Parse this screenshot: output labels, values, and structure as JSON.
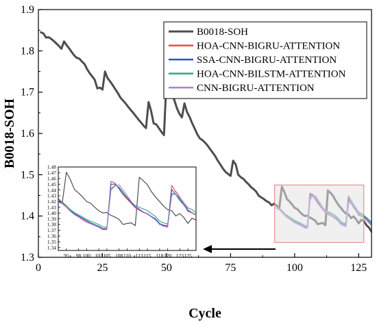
{
  "chart_data": [
    {
      "type": "line",
      "ylabel": "B0018-SOH",
      "xlabel": "Cycle",
      "xlim": [
        0,
        130
      ],
      "ylim": [
        1.3,
        1.9
      ],
      "x_ticks": [
        0,
        25,
        50,
        75,
        100,
        125
      ],
      "y_ticks": [
        "1.3",
        "1.4",
        "1.5",
        "1.6",
        "1.7",
        "1.8",
        "1.9"
      ],
      "legend_position": "top-right",
      "grid": false,
      "series": [
        {
          "name": "B0018-SOH",
          "color": "#4d4d4d",
          "x": [
            1,
            2,
            3,
            4,
            5,
            6,
            7,
            8,
            9,
            10,
            11,
            12,
            13,
            14,
            15,
            16,
            17,
            18,
            19,
            20,
            21,
            22,
            23,
            24,
            25,
            26,
            27,
            28,
            29,
            30,
            31,
            32,
            33,
            34,
            35,
            36,
            37,
            38,
            39,
            40,
            41,
            42,
            43,
            44,
            45,
            46,
            47,
            48,
            49,
            50,
            51,
            52,
            53,
            54,
            55,
            56,
            57,
            58,
            59,
            60,
            61,
            62,
            63,
            64,
            65,
            66,
            67,
            68,
            69,
            70,
            71,
            72,
            73,
            74,
            75,
            76,
            77,
            78,
            79,
            80,
            81,
            82,
            83,
            84,
            85,
            86,
            87,
            88,
            89,
            90,
            91,
            92,
            93,
            94,
            95,
            96,
            97,
            98,
            99,
            100,
            101,
            102,
            103,
            104,
            105,
            106,
            107,
            108,
            109,
            110,
            111,
            112,
            113,
            114,
            115,
            116,
            117,
            118,
            119,
            120,
            121,
            122,
            123,
            124,
            125,
            126,
            127,
            128,
            129,
            130
          ],
          "y": [
            1.845,
            1.842,
            1.832,
            1.833,
            1.829,
            1.824,
            1.818,
            1.812,
            1.805,
            1.823,
            1.814,
            1.806,
            1.797,
            1.789,
            1.783,
            1.781,
            1.774,
            1.768,
            1.756,
            1.746,
            1.738,
            1.73,
            1.709,
            1.711,
            1.706,
            1.75,
            1.734,
            1.726,
            1.717,
            1.707,
            1.698,
            1.687,
            1.68,
            1.673,
            1.665,
            1.657,
            1.65,
            1.642,
            1.634,
            1.627,
            1.619,
            1.613,
            1.676,
            1.654,
            1.624,
            1.622,
            1.613,
            1.604,
            1.596,
            1.728,
            1.72,
            1.7,
            1.682,
            1.662,
            1.648,
            1.639,
            1.673,
            1.652,
            1.64,
            1.625,
            1.612,
            1.598,
            1.588,
            1.584,
            1.578,
            1.571,
            1.562,
            1.554,
            1.545,
            1.534,
            1.525,
            1.515,
            1.507,
            1.502,
            1.497,
            1.534,
            1.525,
            1.5,
            1.494,
            1.49,
            1.483,
            1.477,
            1.47,
            1.465,
            1.459,
            1.449,
            1.445,
            1.441,
            1.436,
            1.433,
            1.426,
            1.43,
            1.425,
            1.418,
            1.471,
            1.458,
            1.441,
            1.435,
            1.428,
            1.42,
            1.417,
            1.41,
            1.404,
            1.4,
            1.401,
            1.396,
            1.393,
            1.389,
            1.38,
            1.382,
            1.383,
            1.378,
            1.462,
            1.456,
            1.449,
            1.437,
            1.428,
            1.42,
            1.412,
            1.406,
            1.404,
            1.395,
            1.399,
            1.392,
            1.382,
            1.391,
            1.388,
            1.378,
            1.372,
            1.362
          ]
        },
        {
          "name": "HOA-CNN-BIGRU-ATTENTION",
          "color": "#e8474b",
          "x": [
            93,
            94,
            95,
            96,
            97,
            98,
            99,
            100,
            101,
            102,
            103,
            104,
            105,
            106,
            107,
            108,
            109,
            110,
            111,
            112,
            113,
            114,
            115,
            116,
            117,
            118,
            119,
            120,
            121,
            122,
            123,
            124,
            125,
            126,
            127,
            128,
            129,
            130
          ],
          "y": [
            1.422,
            1.418,
            1.411,
            1.404,
            1.398,
            1.394,
            1.389,
            1.385,
            1.382,
            1.38,
            1.376,
            1.372,
            1.372,
            1.455,
            1.452,
            1.442,
            1.432,
            1.424,
            1.417,
            1.409,
            1.405,
            1.401,
            1.398,
            1.393,
            1.389,
            1.38,
            1.378,
            1.377,
            1.448,
            1.437,
            1.425,
            1.415,
            1.403,
            1.4,
            1.396,
            1.391,
            1.384,
            1.378
          ]
        },
        {
          "name": "SSA-CNN-BIGRU-ATTENTION",
          "color": "#1f5bbf",
          "x": [
            93,
            94,
            95,
            96,
            97,
            98,
            99,
            100,
            101,
            102,
            103,
            104,
            105,
            106,
            107,
            108,
            109,
            110,
            111,
            112,
            113,
            114,
            115,
            116,
            117,
            118,
            119,
            120,
            121,
            122,
            123,
            124,
            125,
            126,
            127,
            128,
            129,
            130
          ],
          "y": [
            1.42,
            1.417,
            1.41,
            1.404,
            1.399,
            1.395,
            1.391,
            1.387,
            1.383,
            1.38,
            1.377,
            1.373,
            1.373,
            1.45,
            1.45,
            1.443,
            1.433,
            1.426,
            1.418,
            1.411,
            1.406,
            1.402,
            1.399,
            1.394,
            1.39,
            1.382,
            1.379,
            1.378,
            1.441,
            1.432,
            1.422,
            1.414,
            1.404,
            1.401,
            1.397,
            1.392,
            1.386,
            1.38
          ]
        },
        {
          "name": "HOA-CNN-BILSTM-ATTENTION",
          "color": "#2aa876",
          "x": [
            93,
            94,
            95,
            96,
            97,
            98,
            99,
            100,
            101,
            102,
            103,
            104,
            105,
            106,
            107,
            108,
            109,
            110,
            111,
            112,
            113,
            114,
            115,
            116,
            117,
            118,
            119,
            120,
            121,
            122,
            123,
            124,
            125,
            126,
            127,
            128,
            129,
            130
          ],
          "y": [
            1.421,
            1.419,
            1.413,
            1.406,
            1.401,
            1.397,
            1.393,
            1.389,
            1.386,
            1.383,
            1.38,
            1.376,
            1.375,
            1.442,
            1.448,
            1.445,
            1.436,
            1.427,
            1.42,
            1.413,
            1.41,
            1.407,
            1.404,
            1.399,
            1.394,
            1.386,
            1.383,
            1.381,
            1.434,
            1.432,
            1.424,
            1.418,
            1.409,
            1.406,
            1.401,
            1.396,
            1.39,
            1.384
          ]
        },
        {
          "name": "CNN-BIGRU-ATTENTION",
          "color": "#b67ad8",
          "x": [
            93,
            94,
            95,
            96,
            97,
            98,
            99,
            100,
            101,
            102,
            103,
            104,
            105,
            106,
            107,
            108,
            109,
            110,
            111,
            112,
            113,
            114,
            115,
            116,
            117,
            118,
            119,
            120,
            121,
            122,
            123,
            124,
            125,
            126,
            127,
            128,
            129,
            130
          ],
          "y": [
            1.419,
            1.416,
            1.41,
            1.403,
            1.397,
            1.393,
            1.388,
            1.384,
            1.381,
            1.378,
            1.375,
            1.371,
            1.371,
            1.44,
            1.447,
            1.449,
            1.44,
            1.43,
            1.42,
            1.412,
            1.407,
            1.402,
            1.398,
            1.393,
            1.388,
            1.38,
            1.377,
            1.375,
            1.43,
            1.438,
            1.428,
            1.418,
            1.406,
            1.401,
            1.396,
            1.391,
            1.385,
            1.379
          ]
        }
      ]
    },
    {
      "type": "line",
      "role": "inset zoom of cycles 93-127",
      "xlim": [
        93,
        127
      ],
      "ylim": [
        1.335,
        1.48
      ],
      "x_ticks": [
        "95",
        "98",
        "100",
        "103",
        "105",
        "108",
        "110",
        "113",
        "115",
        "118",
        "120",
        "123",
        "125"
      ],
      "y_ticks": [
        "1.34",
        "1.35",
        "1.36",
        "1.37",
        "1.38",
        "1.39",
        "1.40",
        "1.41",
        "1.42",
        "1.43",
        "1.44",
        "1.45",
        "1.46",
        "1.47",
        "1.48"
      ],
      "series_ref": "same five series as the main chart"
    }
  ]
}
